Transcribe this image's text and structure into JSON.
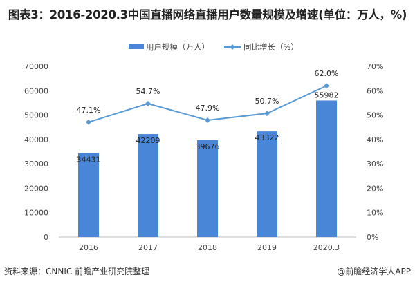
{
  "title": "图表3：2016-2020.3中国直播网络直播用户数量规模及增速(单位：万人，%)",
  "source": "资料来源：CNNIC 前瞻产业研究院整理",
  "credit": "@前瞻经济学人APP",
  "chart_data": {
    "type": "bar",
    "categories": [
      "2016",
      "2017",
      "2018",
      "2019",
      "2020.3"
    ],
    "series": [
      {
        "name": "用户规模（万人）",
        "type": "bar",
        "axis": "left",
        "color": "#4a86d8",
        "values": [
          34431,
          42209,
          39676,
          43322,
          55982
        ],
        "labels": [
          "34431",
          "42209",
          "39676",
          "43322",
          "55982"
        ]
      },
      {
        "name": "同比增长（%）",
        "type": "line",
        "axis": "right",
        "color": "#5b9bd5",
        "values": [
          47.1,
          54.7,
          47.9,
          50.7,
          62.0
        ],
        "labels": [
          "47.1%",
          "54.7%",
          "47.9%",
          "50.7%",
          "62.0%"
        ]
      }
    ],
    "ylim": [
      0,
      70000
    ],
    "yticks": [
      "0",
      "10000",
      "20000",
      "30000",
      "40000",
      "50000",
      "60000",
      "70000"
    ],
    "y2lim": [
      0,
      70
    ],
    "y2ticks": [
      "0%",
      "10%",
      "20%",
      "30%",
      "40%",
      "50%",
      "60%",
      "70%"
    ],
    "legend": "top",
    "grid": false
  }
}
